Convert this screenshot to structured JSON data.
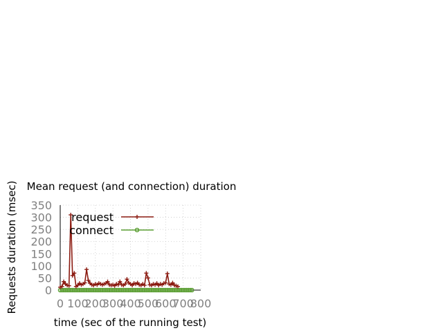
{
  "chart_data": {
    "type": "line",
    "title": "Mean request (and connection) duration",
    "xlabel": "time (sec of the running test)",
    "ylabel": "Requests duration (msec)",
    "xlim": [
      0,
      800
    ],
    "ylim": [
      0,
      350
    ],
    "x_ticks": [
      "0",
      "100",
      "200",
      "300",
      "400",
      "500",
      "600",
      "700",
      "800"
    ],
    "y_ticks": [
      "0",
      "50",
      "100",
      "150",
      "200",
      "250",
      "300",
      "350"
    ],
    "grid": true,
    "legend_position": "top-right",
    "series": [
      {
        "name": "request",
        "color": "#8b1a10",
        "marker": "plus",
        "points": [
          [
            0,
            12
          ],
          [
            10,
            15
          ],
          [
            20,
            35
          ],
          [
            30,
            25
          ],
          [
            40,
            20
          ],
          [
            50,
            18
          ],
          [
            60,
            310
          ],
          [
            70,
            60
          ],
          [
            80,
            70
          ],
          [
            90,
            15
          ],
          [
            100,
            20
          ],
          [
            110,
            28
          ],
          [
            120,
            22
          ],
          [
            130,
            25
          ],
          [
            140,
            30
          ],
          [
            150,
            85
          ],
          [
            160,
            40
          ],
          [
            170,
            28
          ],
          [
            180,
            22
          ],
          [
            190,
            20
          ],
          [
            200,
            25
          ],
          [
            210,
            22
          ],
          [
            220,
            28
          ],
          [
            230,
            25
          ],
          [
            240,
            22
          ],
          [
            250,
            25
          ],
          [
            260,
            28
          ],
          [
            270,
            35
          ],
          [
            280,
            22
          ],
          [
            290,
            20
          ],
          [
            300,
            22
          ],
          [
            310,
            18
          ],
          [
            320,
            25
          ],
          [
            330,
            22
          ],
          [
            340,
            35
          ],
          [
            350,
            22
          ],
          [
            360,
            20
          ],
          [
            370,
            25
          ],
          [
            380,
            45
          ],
          [
            390,
            30
          ],
          [
            400,
            25
          ],
          [
            410,
            20
          ],
          [
            420,
            28
          ],
          [
            430,
            25
          ],
          [
            440,
            30
          ],
          [
            450,
            22
          ],
          [
            460,
            20
          ],
          [
            470,
            25
          ],
          [
            480,
            20
          ],
          [
            490,
            70
          ],
          [
            500,
            50
          ],
          [
            510,
            22
          ],
          [
            520,
            20
          ],
          [
            530,
            25
          ],
          [
            540,
            22
          ],
          [
            550,
            28
          ],
          [
            560,
            20
          ],
          [
            570,
            25
          ],
          [
            580,
            22
          ],
          [
            590,
            28
          ],
          [
            600,
            30
          ],
          [
            610,
            68
          ],
          [
            620,
            25
          ],
          [
            630,
            22
          ],
          [
            640,
            30
          ],
          [
            650,
            20
          ],
          [
            660,
            18
          ],
          [
            670,
            15
          ]
        ]
      },
      {
        "name": "connect",
        "color": "#5a9e32",
        "marker": "circle",
        "points": [
          [
            0,
            0
          ],
          [
            10,
            0
          ],
          [
            20,
            0
          ],
          [
            30,
            0
          ],
          [
            40,
            0
          ],
          [
            50,
            0
          ],
          [
            60,
            0
          ],
          [
            70,
            0
          ],
          [
            80,
            0
          ],
          [
            90,
            0
          ],
          [
            100,
            0
          ],
          [
            110,
            0
          ],
          [
            120,
            0
          ],
          [
            130,
            0
          ],
          [
            140,
            0
          ],
          [
            150,
            0
          ],
          [
            160,
            0
          ],
          [
            170,
            0
          ],
          [
            180,
            0
          ],
          [
            190,
            0
          ],
          [
            200,
            0
          ],
          [
            210,
            0
          ],
          [
            220,
            0
          ],
          [
            230,
            0
          ],
          [
            240,
            0
          ],
          [
            250,
            0
          ],
          [
            260,
            0
          ],
          [
            270,
            0
          ],
          [
            280,
            0
          ],
          [
            290,
            0
          ],
          [
            300,
            0
          ],
          [
            310,
            0
          ],
          [
            320,
            0
          ],
          [
            330,
            0
          ],
          [
            340,
            0
          ],
          [
            350,
            0
          ],
          [
            360,
            0
          ],
          [
            370,
            0
          ],
          [
            380,
            0
          ],
          [
            390,
            0
          ],
          [
            400,
            0
          ],
          [
            410,
            0
          ],
          [
            420,
            0
          ],
          [
            430,
            0
          ],
          [
            440,
            0
          ],
          [
            450,
            0
          ],
          [
            460,
            0
          ],
          [
            470,
            0
          ],
          [
            480,
            0
          ],
          [
            490,
            0
          ],
          [
            500,
            0
          ],
          [
            510,
            0
          ],
          [
            520,
            0
          ],
          [
            530,
            0
          ],
          [
            540,
            0
          ],
          [
            550,
            0
          ],
          [
            560,
            0
          ],
          [
            570,
            0
          ],
          [
            580,
            0
          ],
          [
            590,
            0
          ],
          [
            600,
            0
          ],
          [
            610,
            0
          ],
          [
            620,
            0
          ],
          [
            630,
            0
          ],
          [
            640,
            0
          ],
          [
            650,
            0
          ],
          [
            660,
            0
          ],
          [
            670,
            0
          ],
          [
            680,
            0
          ],
          [
            690,
            0
          ],
          [
            700,
            0
          ],
          [
            710,
            0
          ],
          [
            720,
            0
          ],
          [
            730,
            0
          ],
          [
            740,
            0
          ],
          [
            750,
            0
          ]
        ]
      }
    ]
  }
}
